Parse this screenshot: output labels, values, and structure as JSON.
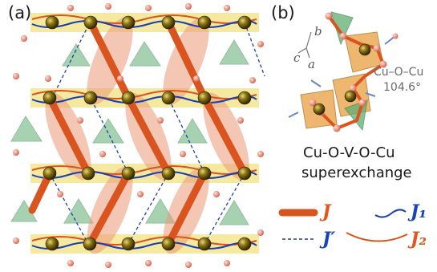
{
  "panel_a": {
    "label": "(a)"
  },
  "panel_b": {
    "label": "(b)",
    "axes": {
      "b": "b",
      "c": "c",
      "a": "a"
    },
    "angle": {
      "name": "Cu–O–Cu",
      "value": "104.6°"
    },
    "caption": {
      "line1": "Cu-O-V-O-Cu",
      "line2": "superexchange"
    }
  },
  "legend": {
    "J": "J",
    "J1": "J₁",
    "J_prime": "J′",
    "J2": "J₂"
  },
  "colors": {
    "J_bond": "#d9541e",
    "J2_halo": "#ec9a7a",
    "J1_chain": "#1a3fb0",
    "chain_band": "#f3e68e",
    "cu_atom": "#6b5a0c",
    "o_atom": "#f0a08c",
    "v_tetra": "#5fae72",
    "cu_polyhedron": "#e8a040"
  }
}
